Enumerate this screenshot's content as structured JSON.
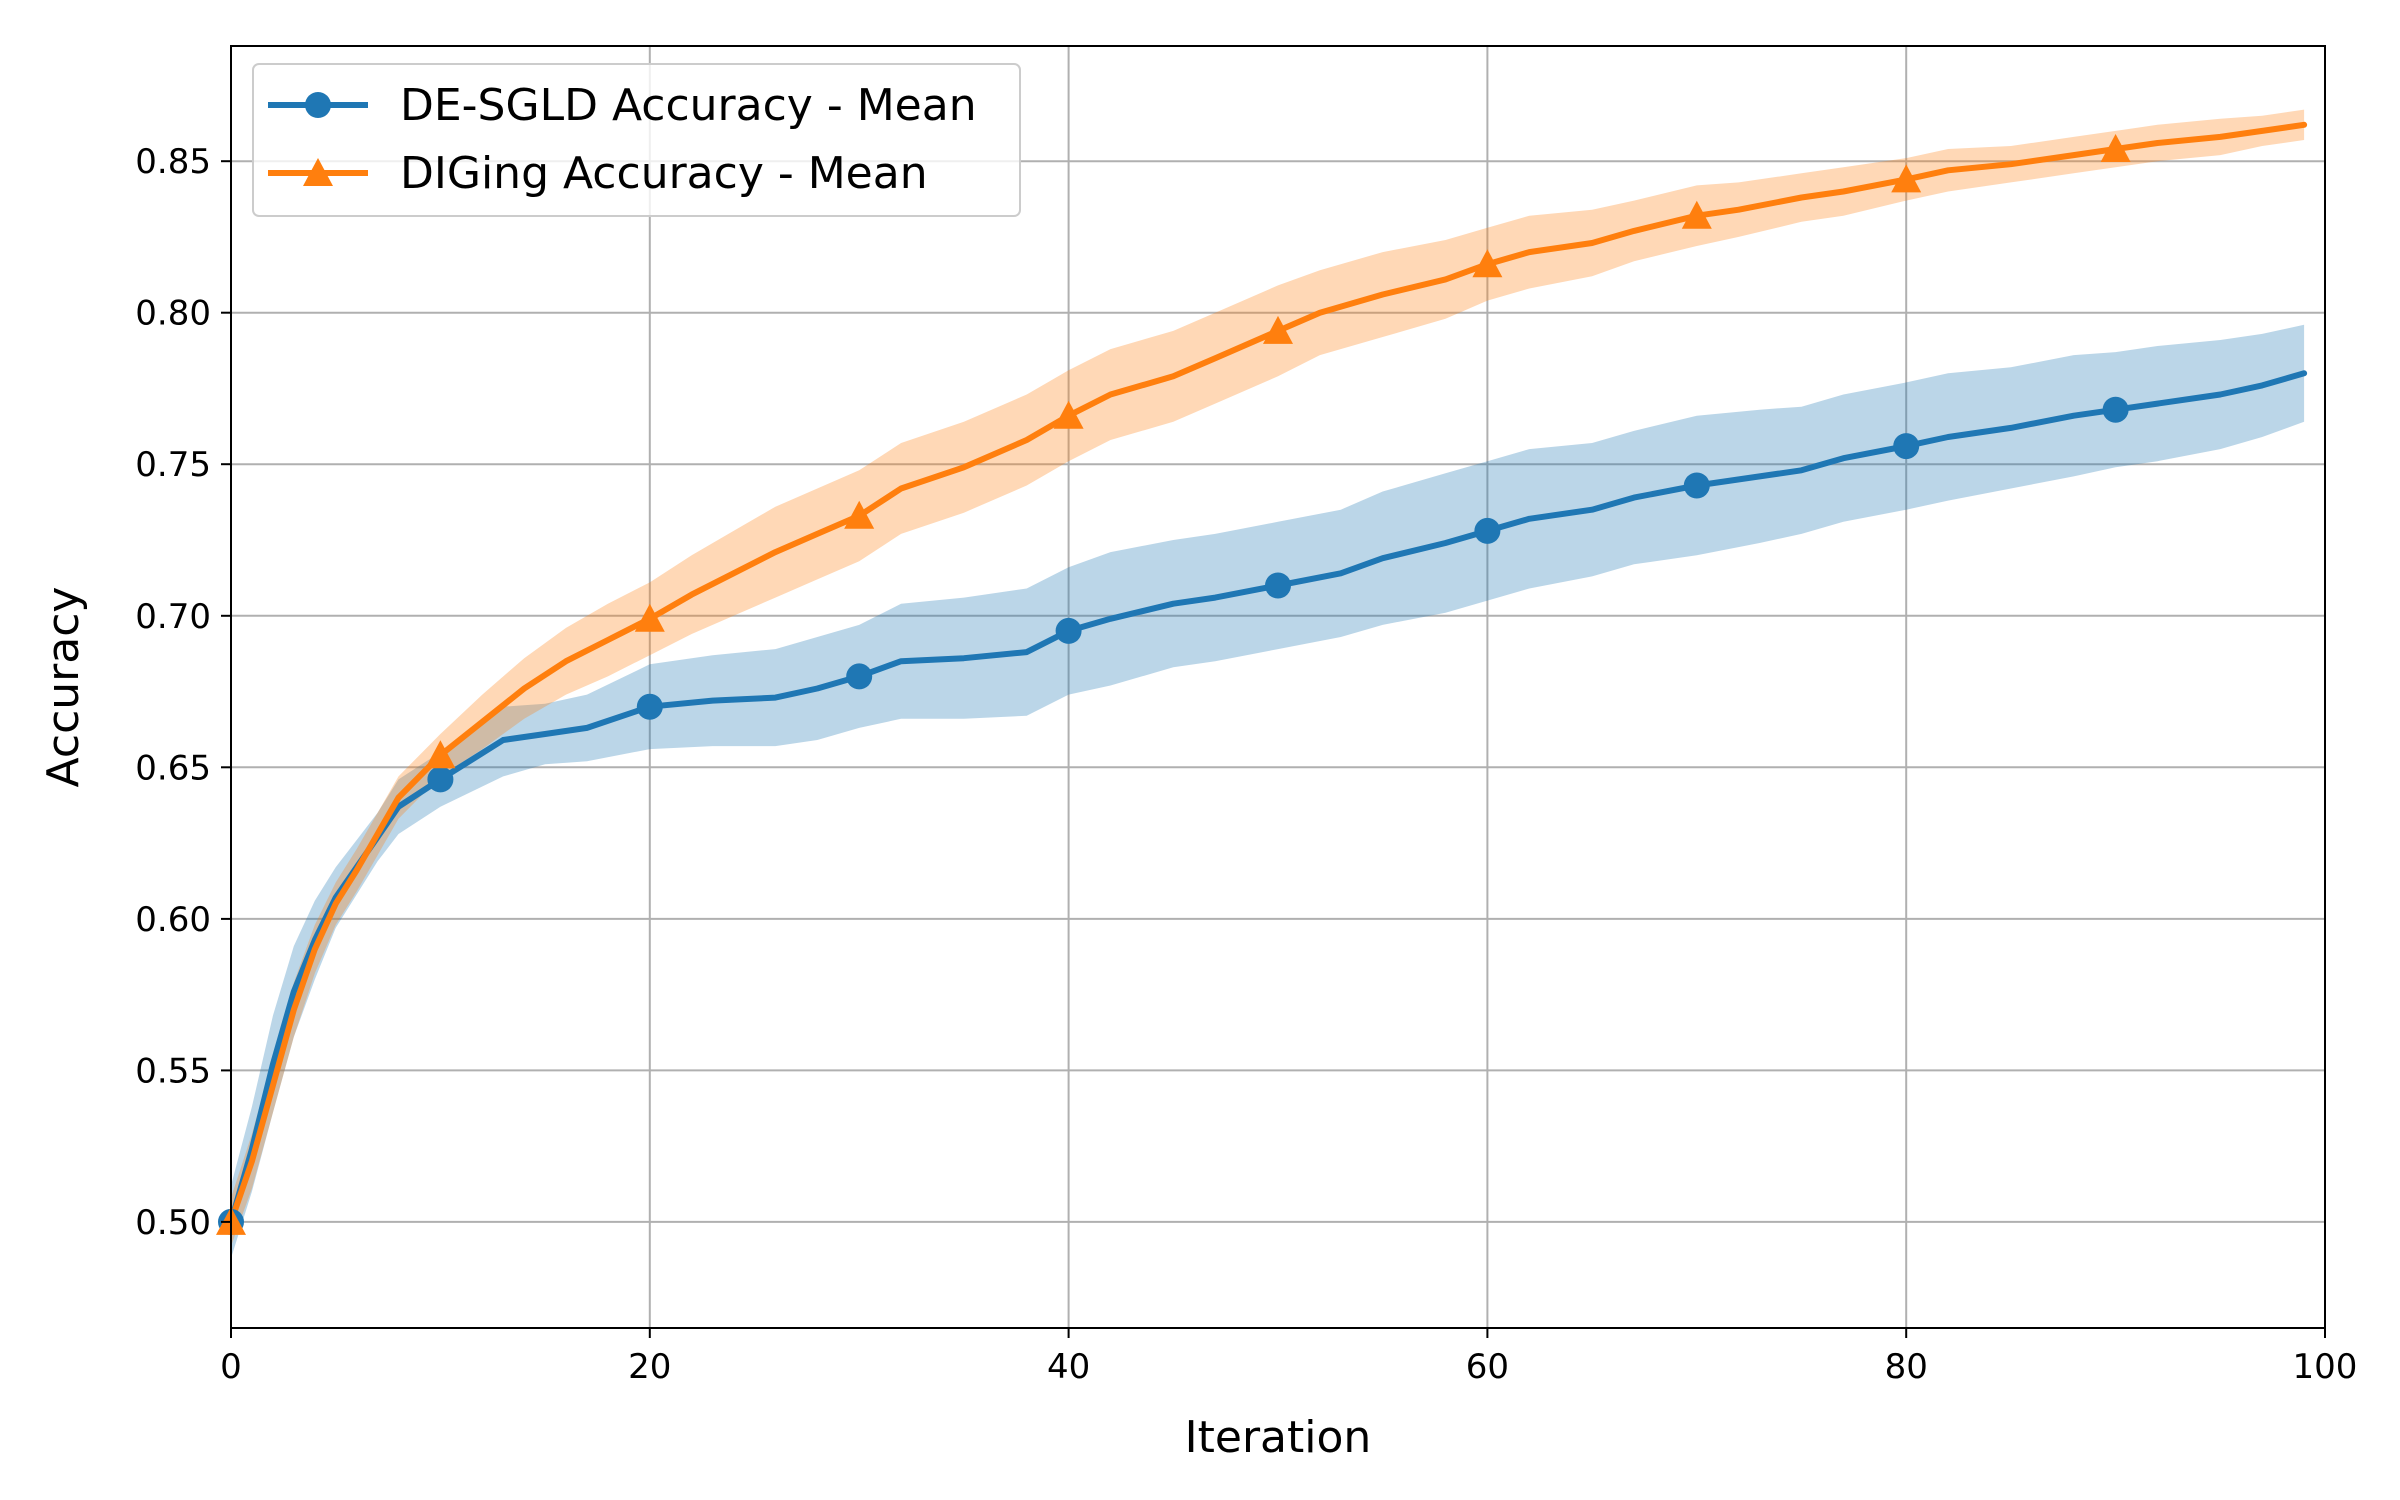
{
  "chart_data": {
    "type": "line",
    "title": "",
    "xlabel": "Iteration",
    "ylabel": "Accuracy",
    "xlim": [
      0,
      100
    ],
    "ylim": [
      0.465,
      0.888
    ],
    "xticks": [
      0,
      20,
      40,
      60,
      80,
      100
    ],
    "xtick_labels": [
      "0",
      "20",
      "40",
      "60",
      "80",
      "100"
    ],
    "yticks": [
      0.5,
      0.55,
      0.6,
      0.65,
      0.7,
      0.75,
      0.8,
      0.85
    ],
    "ytick_labels": [
      "0.50",
      "0.55",
      "0.60",
      "0.65",
      "0.70",
      "0.75",
      "0.80",
      "0.85"
    ],
    "grid": true,
    "legend_position": "top-left",
    "series": [
      {
        "name": "DE-SGLD Accuracy - Mean",
        "color": "#1f77b4",
        "marker": "circle",
        "marker_every": 10,
        "x": [
          0,
          1,
          2,
          3,
          4,
          5,
          6,
          7,
          8,
          10,
          13,
          15,
          17,
          20,
          23,
          26,
          28,
          30,
          32,
          35,
          38,
          40,
          42,
          45,
          47,
          50,
          53,
          55,
          58,
          60,
          62,
          65,
          67,
          70,
          73,
          75,
          77,
          80,
          82,
          85,
          88,
          90,
          92,
          95,
          97,
          99
        ],
        "mean": [
          0.5,
          0.524,
          0.552,
          0.576,
          0.593,
          0.607,
          0.617,
          0.627,
          0.637,
          0.646,
          0.659,
          0.661,
          0.663,
          0.67,
          0.672,
          0.673,
          0.676,
          0.68,
          0.685,
          0.686,
          0.688,
          0.695,
          0.699,
          0.704,
          0.706,
          0.71,
          0.714,
          0.719,
          0.724,
          0.728,
          0.732,
          0.735,
          0.739,
          0.743,
          0.746,
          0.748,
          0.752,
          0.756,
          0.759,
          0.762,
          0.766,
          0.768,
          0.77,
          0.773,
          0.776,
          0.78
        ],
        "lower": [
          0.488,
          0.51,
          0.536,
          0.561,
          0.58,
          0.597,
          0.608,
          0.619,
          0.628,
          0.637,
          0.647,
          0.651,
          0.652,
          0.656,
          0.657,
          0.657,
          0.659,
          0.663,
          0.666,
          0.666,
          0.667,
          0.674,
          0.677,
          0.683,
          0.685,
          0.689,
          0.693,
          0.697,
          0.701,
          0.705,
          0.709,
          0.713,
          0.717,
          0.72,
          0.724,
          0.727,
          0.731,
          0.735,
          0.738,
          0.742,
          0.746,
          0.749,
          0.751,
          0.755,
          0.759,
          0.764
        ],
        "upper": [
          0.512,
          0.538,
          0.568,
          0.591,
          0.606,
          0.617,
          0.626,
          0.635,
          0.646,
          0.655,
          0.67,
          0.671,
          0.674,
          0.684,
          0.687,
          0.689,
          0.693,
          0.697,
          0.704,
          0.706,
          0.709,
          0.716,
          0.721,
          0.725,
          0.727,
          0.731,
          0.735,
          0.741,
          0.747,
          0.751,
          0.755,
          0.757,
          0.761,
          0.766,
          0.768,
          0.769,
          0.773,
          0.777,
          0.78,
          0.782,
          0.786,
          0.787,
          0.789,
          0.791,
          0.793,
          0.796
        ]
      },
      {
        "name": "DIGing Accuracy - Mean",
        "color": "#ff7f0e",
        "marker": "triangle",
        "marker_every": 10,
        "x": [
          0,
          1,
          2,
          3,
          4,
          5,
          6,
          7,
          8,
          10,
          12,
          14,
          16,
          18,
          20,
          22,
          24,
          26,
          28,
          30,
          32,
          35,
          38,
          40,
          42,
          45,
          47,
          50,
          52,
          55,
          58,
          60,
          62,
          65,
          67,
          70,
          72,
          75,
          77,
          80,
          82,
          85,
          88,
          90,
          92,
          95,
          97,
          99
        ],
        "mean": [
          0.5,
          0.52,
          0.545,
          0.57,
          0.59,
          0.605,
          0.616,
          0.628,
          0.64,
          0.654,
          0.665,
          0.676,
          0.685,
          0.692,
          0.699,
          0.707,
          0.714,
          0.721,
          0.727,
          0.733,
          0.742,
          0.749,
          0.758,
          0.766,
          0.773,
          0.779,
          0.785,
          0.794,
          0.8,
          0.806,
          0.811,
          0.816,
          0.82,
          0.823,
          0.827,
          0.832,
          0.834,
          0.838,
          0.84,
          0.844,
          0.847,
          0.849,
          0.852,
          0.854,
          0.856,
          0.858,
          0.86,
          0.862
        ],
        "lower": [
          0.492,
          0.511,
          0.536,
          0.561,
          0.582,
          0.598,
          0.609,
          0.621,
          0.633,
          0.647,
          0.656,
          0.666,
          0.674,
          0.68,
          0.687,
          0.694,
          0.7,
          0.706,
          0.712,
          0.718,
          0.727,
          0.734,
          0.743,
          0.751,
          0.758,
          0.764,
          0.77,
          0.779,
          0.786,
          0.792,
          0.798,
          0.804,
          0.808,
          0.812,
          0.817,
          0.822,
          0.825,
          0.83,
          0.832,
          0.837,
          0.84,
          0.843,
          0.846,
          0.848,
          0.85,
          0.852,
          0.855,
          0.857
        ],
        "upper": [
          0.508,
          0.529,
          0.554,
          0.579,
          0.598,
          0.612,
          0.623,
          0.635,
          0.647,
          0.661,
          0.674,
          0.686,
          0.696,
          0.704,
          0.711,
          0.72,
          0.728,
          0.736,
          0.742,
          0.748,
          0.757,
          0.764,
          0.773,
          0.781,
          0.788,
          0.794,
          0.8,
          0.809,
          0.814,
          0.82,
          0.824,
          0.828,
          0.832,
          0.834,
          0.837,
          0.842,
          0.843,
          0.846,
          0.848,
          0.851,
          0.854,
          0.855,
          0.858,
          0.86,
          0.862,
          0.864,
          0.865,
          0.867
        ]
      }
    ]
  }
}
